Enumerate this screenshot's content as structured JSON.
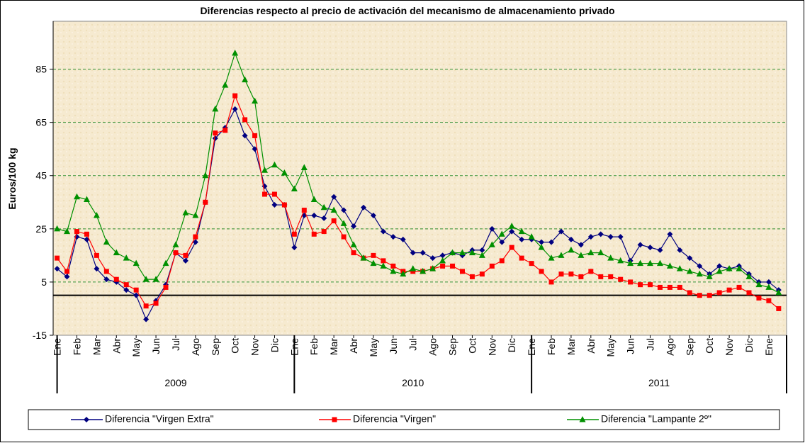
{
  "chart_data": {
    "type": "line",
    "title": "Diferencias respecto al precio de activación del mecanismo de almacenamiento privado",
    "y_label": "Euros/100 kg",
    "x": [
      0,
      0.5,
      1,
      1.5,
      2,
      2.5,
      3,
      3.5,
      4,
      4.5,
      5,
      5.5,
      6,
      6.5,
      7,
      7.5,
      8,
      8.5,
      9,
      9.5,
      10,
      10.5,
      11,
      11.5,
      12,
      12.5,
      13,
      13.5,
      14,
      14.5,
      15,
      15.5,
      16,
      16.5,
      17,
      17.5,
      18,
      18.5,
      19,
      19.5,
      20,
      20.5,
      21,
      21.5,
      22,
      22.5,
      23,
      23.5,
      24,
      24.5,
      25,
      25.5,
      26,
      26.5,
      27,
      27.5,
      28,
      28.5,
      29,
      29.5,
      30,
      30.5,
      31,
      31.5,
      32,
      32.5,
      33,
      33.5,
      34,
      34.5,
      35,
      35.5,
      36,
      36.5
    ],
    "series": [
      {
        "name": "Diferencia \"Virgen Extra\"",
        "color": "#000080",
        "marker": "diamond",
        "values": [
          10,
          7,
          22,
          21,
          10,
          6,
          5,
          2,
          0,
          -9,
          -2,
          4,
          16,
          13,
          20,
          35,
          59,
          63,
          70,
          60,
          55,
          41,
          34,
          34,
          18,
          30,
          30,
          29,
          37,
          32,
          26,
          33,
          30,
          24,
          22,
          21,
          16,
          16,
          14,
          15,
          16,
          15,
          17,
          17,
          25,
          20,
          24,
          21,
          21,
          20,
          20,
          24,
          21,
          19,
          22,
          23,
          22,
          22,
          13,
          19,
          18,
          17,
          23,
          17,
          14,
          11,
          8,
          11,
          10,
          11,
          8,
          5,
          5,
          2
        ]
      },
      {
        "name": "Diferencia \"Virgen\"",
        "color": "#ff0000",
        "marker": "square",
        "values": [
          14,
          9,
          24,
          23,
          15,
          9,
          6,
          4,
          2,
          -4,
          -3,
          3,
          16,
          15,
          22,
          35,
          61,
          62,
          75,
          66,
          60,
          38,
          38,
          34,
          23,
          32,
          23,
          24,
          28,
          22,
          16,
          14,
          15,
          13,
          11,
          9,
          9,
          9,
          10,
          11,
          11,
          9,
          7,
          8,
          11,
          13,
          18,
          14,
          12,
          9,
          5,
          8,
          8,
          7,
          9,
          7,
          7,
          6,
          5,
          4,
          4,
          3,
          3,
          3,
          1,
          0,
          0,
          1,
          2,
          3,
          1,
          -1,
          -2,
          -5
        ]
      },
      {
        "name": "Diferencia \"Lampante 2º\"",
        "color": "#009000",
        "marker": "triangle",
        "values": [
          25,
          24,
          37,
          36,
          30,
          20,
          16,
          14,
          12,
          6,
          6,
          12,
          19,
          31,
          30,
          45,
          70,
          79,
          91,
          81,
          73,
          47,
          49,
          46,
          40,
          48,
          36,
          33,
          32,
          27,
          19,
          14,
          12,
          11,
          9,
          8,
          10,
          9,
          10,
          13,
          16,
          16,
          16,
          15,
          19,
          23,
          26,
          24,
          22,
          18,
          14,
          15,
          17,
          15,
          16,
          16,
          14,
          13,
          12,
          12,
          12,
          12,
          11,
          10,
          9,
          8,
          7,
          9,
          10,
          10,
          7,
          4,
          3,
          1
        ]
      }
    ],
    "xlim": [
      -0.2,
      36.9
    ],
    "xticks": [
      {
        "value": 0,
        "label": "Ene"
      },
      {
        "value": 1,
        "label": "Feb"
      },
      {
        "value": 2,
        "label": "Mar"
      },
      {
        "value": 3,
        "label": "Abr"
      },
      {
        "value": 4,
        "label": "May"
      },
      {
        "value": 5,
        "label": "Jun"
      },
      {
        "value": 6,
        "label": "Jul"
      },
      {
        "value": 7,
        "label": "Ago"
      },
      {
        "value": 8,
        "label": "Sep"
      },
      {
        "value": 9,
        "label": "Oct"
      },
      {
        "value": 10,
        "label": "Nov"
      },
      {
        "value": 11,
        "label": "Dic"
      },
      {
        "value": 12,
        "label": "Ene"
      },
      {
        "value": 13,
        "label": "Feb"
      },
      {
        "value": 14,
        "label": "Mar"
      },
      {
        "value": 15,
        "label": "Abr"
      },
      {
        "value": 16,
        "label": "May"
      },
      {
        "value": 17,
        "label": "Jun"
      },
      {
        "value": 18,
        "label": "Jul"
      },
      {
        "value": 19,
        "label": "Ago"
      },
      {
        "value": 20,
        "label": "Sep"
      },
      {
        "value": 21,
        "label": "Oct"
      },
      {
        "value": 22,
        "label": "Nov"
      },
      {
        "value": 23,
        "label": "Dic"
      },
      {
        "value": 24,
        "label": "Ene"
      },
      {
        "value": 25,
        "label": "Feb"
      },
      {
        "value": 26,
        "label": "Mar"
      },
      {
        "value": 27,
        "label": "Abr"
      },
      {
        "value": 28,
        "label": "May"
      },
      {
        "value": 29,
        "label": "Jun"
      },
      {
        "value": 30,
        "label": "Jul"
      },
      {
        "value": 31,
        "label": "Ago"
      },
      {
        "value": 32,
        "label": "Sep"
      },
      {
        "value": 33,
        "label": "Oct"
      },
      {
        "value": 34,
        "label": "Nov"
      },
      {
        "value": 35,
        "label": "Dic"
      },
      {
        "value": 36,
        "label": "Ene"
      }
    ],
    "x_groups": [
      {
        "label": "2009",
        "start": 0,
        "end": 12
      },
      {
        "label": "2010",
        "start": 12,
        "end": 24
      },
      {
        "label": "2011",
        "start": 24,
        "end": 37
      }
    ],
    "ylim": [
      -15,
      103
    ],
    "yticks": [
      -15,
      5,
      25,
      45,
      65,
      85
    ],
    "reference_line": 0,
    "grid": true,
    "legend": "bottom"
  }
}
